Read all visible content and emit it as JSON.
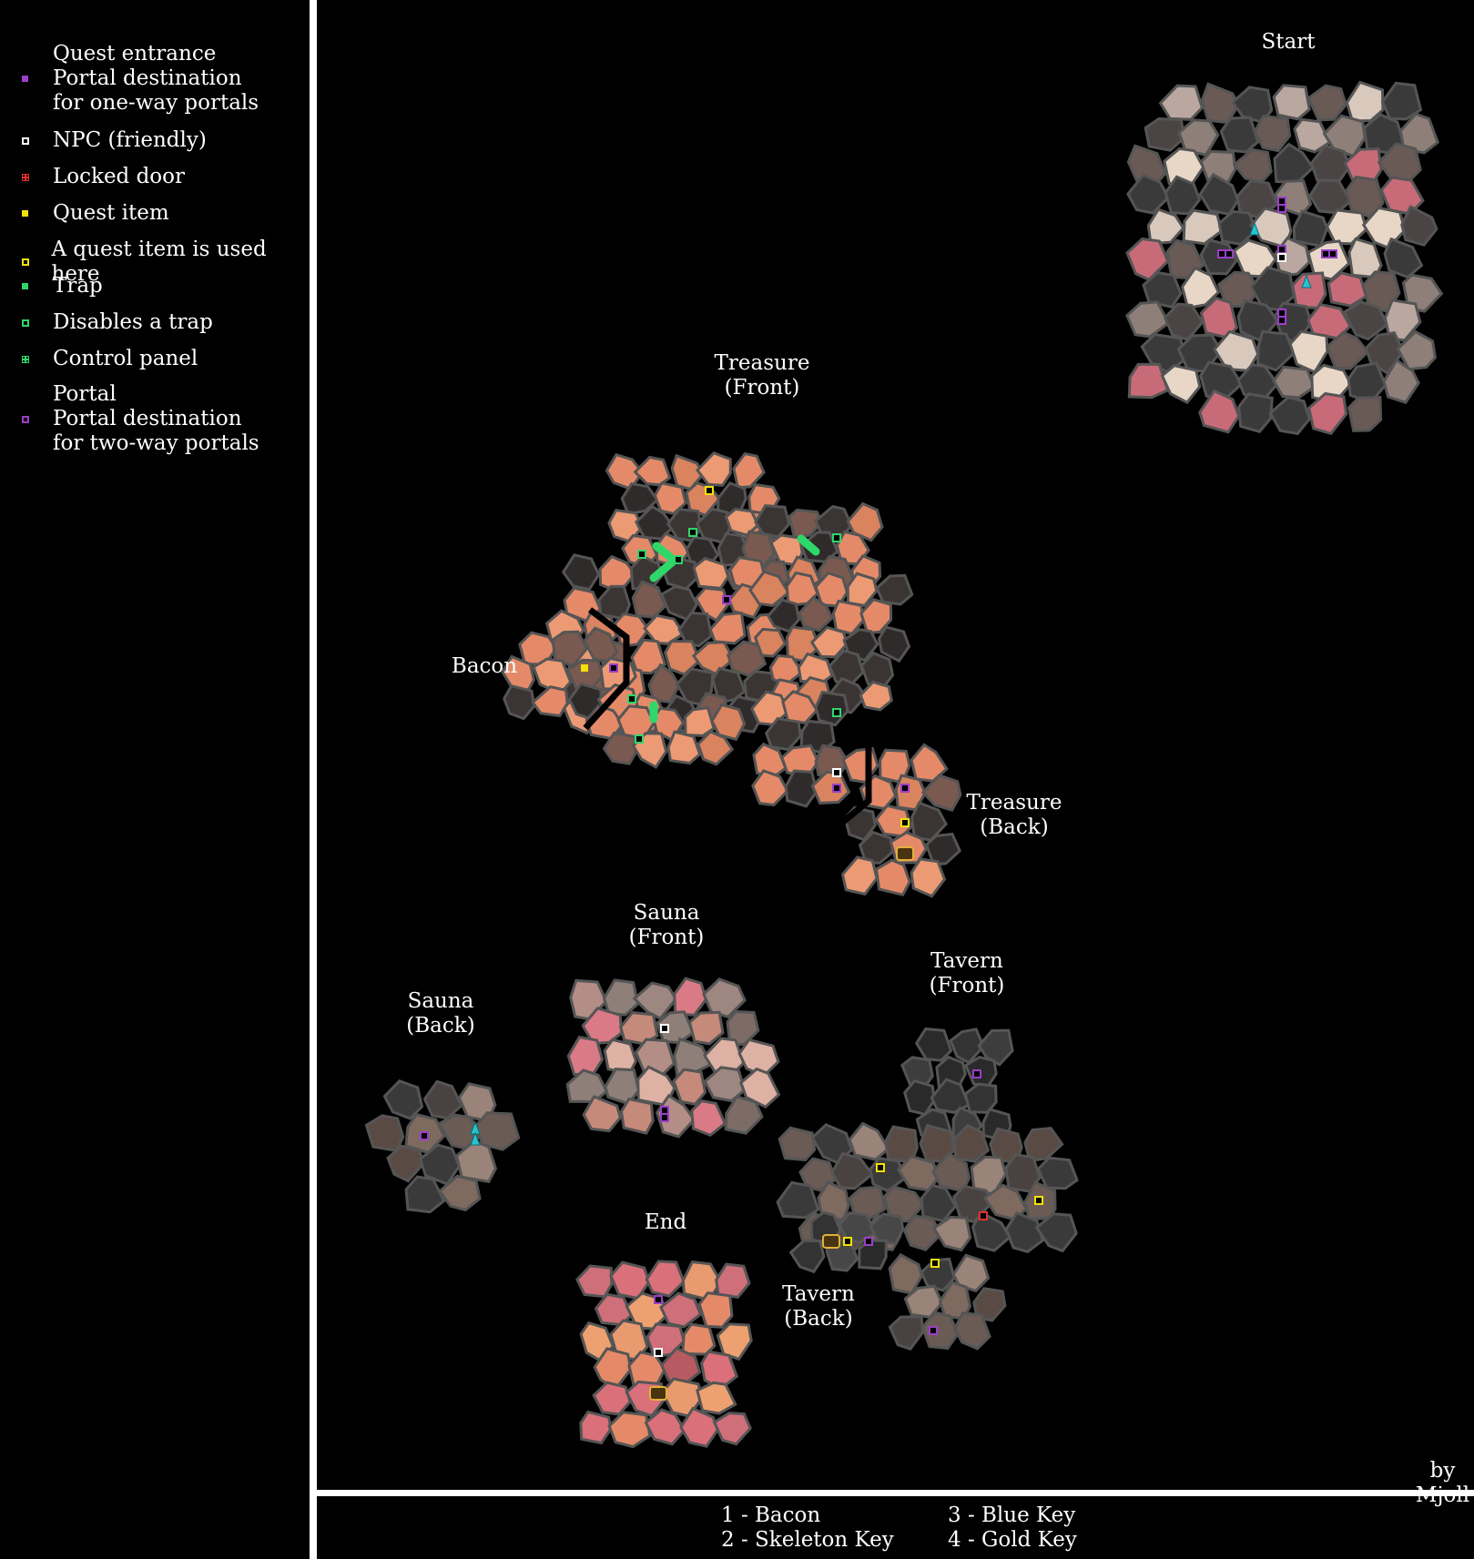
{
  "legend": [
    {
      "text": "Quest entrance\nPortal destination\nfor one-way portals",
      "symbol": "filled",
      "color": "#9b3fc8"
    },
    {
      "text": "NPC (friendly)",
      "symbol": "hollow",
      "color": "#ffffff"
    },
    {
      "text": "Locked door",
      "symbol": "cross",
      "color": "#e03030"
    },
    {
      "text": "Quest item",
      "symbol": "filled",
      "color": "#f2e10a"
    },
    {
      "text": "A quest item is used here",
      "symbol": "hollow",
      "color": "#f2e10a"
    },
    {
      "text": "Trap",
      "symbol": "filled",
      "color": "#2fd66a"
    },
    {
      "text": "Disables a trap",
      "symbol": "hollow",
      "color": "#2fd66a"
    },
    {
      "text": "Control panel",
      "symbol": "cross",
      "color": "#2fd66a"
    },
    {
      "text": "Portal\nPortal destination\nfor two-way portals",
      "symbol": "hollow",
      "color": "#9b3fc8"
    }
  ],
  "areas": [
    {
      "name": "Start",
      "tone": "grey-pink"
    },
    {
      "name": "Treasure\n(Front)",
      "tone": "salmon"
    },
    {
      "name": "Bacon",
      "tone": "salmon"
    },
    {
      "name": "Treasure\n(Back)",
      "tone": "salmon"
    },
    {
      "name": "Sauna\n(Front)",
      "tone": "pink-grey"
    },
    {
      "name": "Sauna\n(Back)",
      "tone": "brown-grey"
    },
    {
      "name": "Tavern\n(Front)",
      "tone": "brown-grey"
    },
    {
      "name": "Tavern\n(Back)",
      "tone": "dark"
    },
    {
      "name": "End",
      "tone": "salmon-pink"
    }
  ],
  "credit": "by Mjoll",
  "keys": [
    {
      "text": "1 - Bacon"
    },
    {
      "text": "2 - Skeleton Key"
    },
    {
      "text": "3 - Blue Key"
    },
    {
      "text": "4 - Gold Key"
    }
  ],
  "colors": {
    "cell_dark": "#2e2e2e",
    "cell_border": "#555555",
    "salmon": "#e58a68",
    "pink": "#d97a86",
    "grey": "#8e7f78",
    "portal": "#9b3fc8",
    "quest": "#f2e10a",
    "trap": "#2fd66a",
    "npc": "#ffffff",
    "locked": "#e03030",
    "teleporter": "#27c3cf"
  }
}
